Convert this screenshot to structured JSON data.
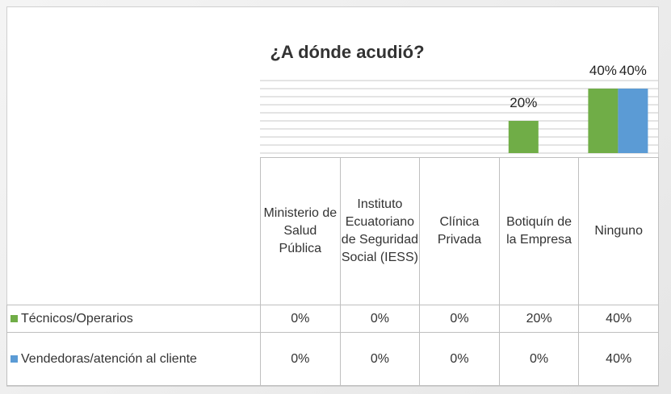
{
  "chart_data": {
    "type": "bar",
    "title": "¿A dónde acudió?",
    "categories": [
      "Ministerio de Salud Pública",
      "Instituto Ecuatoriano de Seguridad Social (IESS)",
      "Clínica Privada",
      "Botiquín de la Empresa",
      "Ninguno"
    ],
    "series": [
      {
        "name": "Técnicos/Operarios",
        "color": "#70ad47",
        "values": [
          0,
          0,
          0,
          20,
          40
        ],
        "value_labels": [
          "0%",
          "0%",
          "0%",
          "20%",
          "40%"
        ]
      },
      {
        "name": "Vendedoras/atención al cliente",
        "color": "#5b9bd5",
        "values": [
          0,
          0,
          0,
          0,
          40
        ],
        "value_labels": [
          "0%",
          "0%",
          "0%",
          "0%",
          "40%"
        ]
      }
    ],
    "ylim": [
      0,
      45
    ],
    "yticks": [
      0,
      5,
      10,
      15,
      20,
      25,
      30,
      35,
      40,
      45
    ],
    "grid": true
  }
}
